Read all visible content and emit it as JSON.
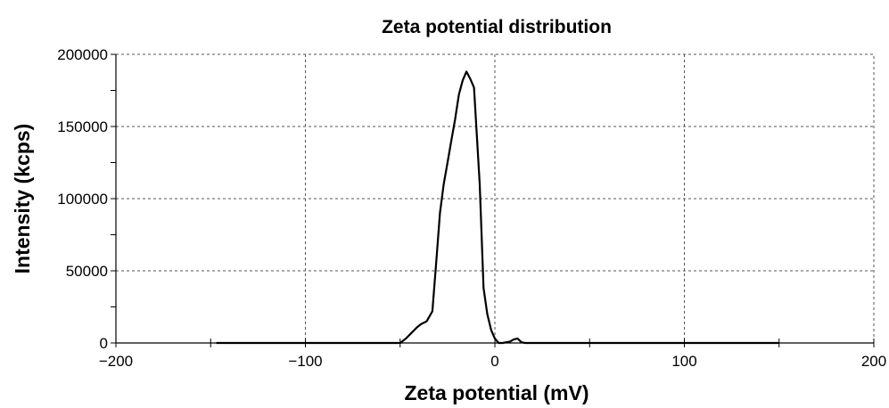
{
  "chart_data": {
    "type": "line",
    "title": "Zeta potential distribution",
    "xlabel": "Zeta potential (mV)",
    "ylabel": "Intensity (kcps)",
    "xlim": [
      -200,
      200
    ],
    "ylim": [
      0,
      200000
    ],
    "x_ticks": [
      -200,
      -100,
      0,
      100,
      200
    ],
    "x_tick_labels": [
      "−200",
      "−100",
      "0",
      "100",
      "200"
    ],
    "y_ticks": [
      0,
      50000,
      100000,
      150000,
      200000
    ],
    "y_tick_labels": [
      "0",
      "50000",
      "100000",
      "150000",
      "200000"
    ],
    "grid": true,
    "series": [
      {
        "color": "#000000",
        "x": [
          -147,
          -100,
          -50,
          -47,
          -44,
          -41,
          -39,
          -36,
          -33,
          -31,
          -29,
          -27,
          -25,
          -23,
          -21,
          -19,
          -17,
          -15,
          -13,
          -11,
          -8,
          -6,
          -4,
          -2,
          0,
          2,
          4,
          6,
          8,
          10,
          12,
          14,
          16,
          18,
          50,
          100,
          150
        ],
        "y": [
          0,
          0,
          0,
          3000,
          7000,
          11000,
          13000,
          15000,
          22000,
          55000,
          90000,
          110000,
          125000,
          140000,
          155000,
          172000,
          182000,
          188000,
          183000,
          177000,
          110000,
          38000,
          20000,
          9000,
          3000,
          0,
          0,
          500,
          1000,
          2500,
          3000,
          500,
          0,
          0,
          0,
          0,
          0
        ]
      }
    ]
  }
}
